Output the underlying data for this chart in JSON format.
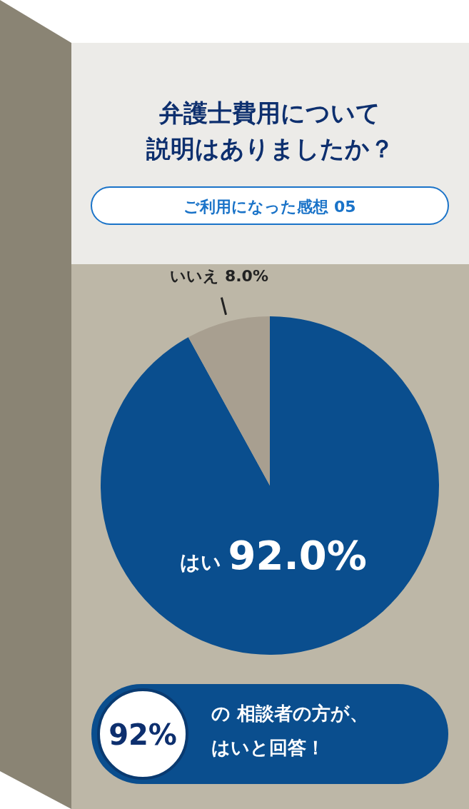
{
  "chart_data": {
    "type": "pie",
    "title": "弁護士費用について説明はありましたか？",
    "subtitle": "ご利用になった感想 05",
    "categories": [
      "はい",
      "いいえ"
    ],
    "values": [
      92.0,
      8.0
    ],
    "value_labels": [
      "92.0%",
      "8.0%"
    ],
    "colors": [
      "#0a4e8e",
      "#a89f90"
    ],
    "annotations": [
      "92%",
      "の 相談者の方が、",
      "はいと回答！"
    ]
  }
}
